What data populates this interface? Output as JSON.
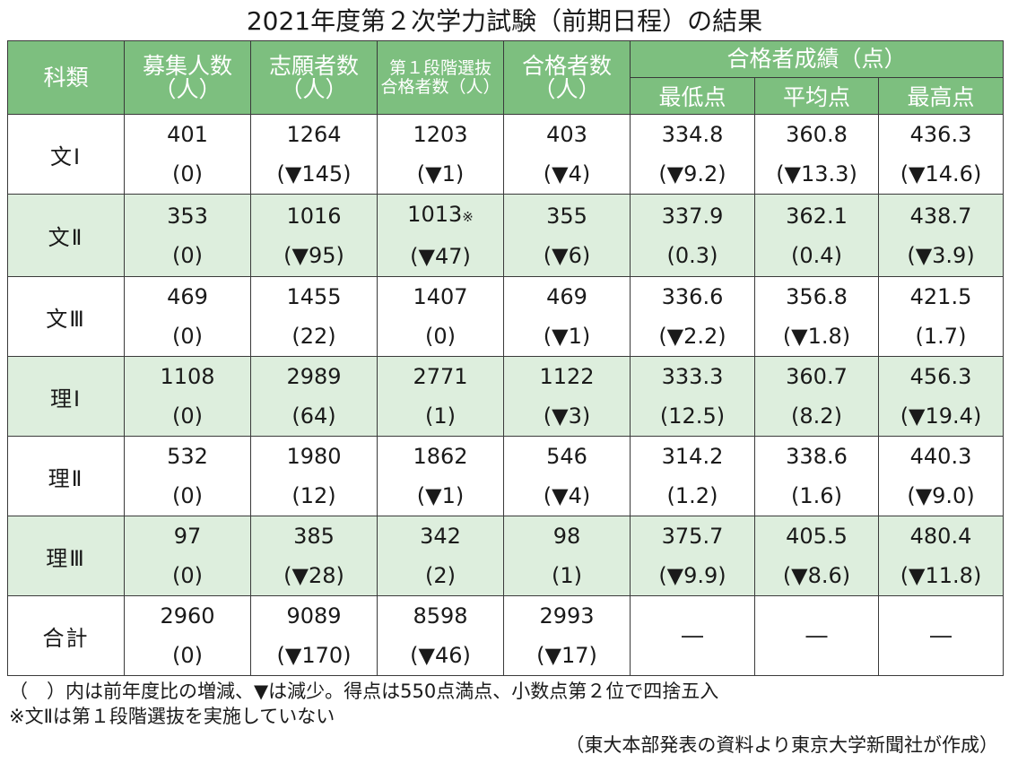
{
  "title": "2021年度第２次学力試験（前期日程）の結果",
  "headers": {
    "category": "科類",
    "recruit": [
      "募集人数",
      "（人）"
    ],
    "applicants": [
      "志願者数",
      "（人）"
    ],
    "first_stage": [
      "第１段階選抜",
      "合格者数（人）"
    ],
    "passers": [
      "合格者数",
      "（人）"
    ],
    "scores_group": "合格者成績（点）",
    "min": "最低点",
    "avg": "平均点",
    "max": "最高点"
  },
  "rows": [
    {
      "category": "文Ⅰ",
      "recruit": [
        "401",
        "(0)"
      ],
      "applicants": [
        "1264",
        "(▼145)"
      ],
      "first_stage": [
        "1203",
        "(▼1)"
      ],
      "first_stage_mark": "",
      "passers": [
        "403",
        "(▼4)"
      ],
      "min": [
        "334.8",
        "(▼9.2)"
      ],
      "avg": [
        "360.8",
        "(▼13.3)"
      ],
      "max": [
        "436.3",
        "(▼14.6)"
      ]
    },
    {
      "category": "文Ⅱ",
      "recruit": [
        "353",
        "(0)"
      ],
      "applicants": [
        "1016",
        "(▼95)"
      ],
      "first_stage": [
        "1013",
        "(▼47)"
      ],
      "first_stage_mark": "※",
      "passers": [
        "355",
        "(▼6)"
      ],
      "min": [
        "337.9",
        "(0.3)"
      ],
      "avg": [
        "362.1",
        "(0.4)"
      ],
      "max": [
        "438.7",
        "(▼3.9)"
      ]
    },
    {
      "category": "文Ⅲ",
      "recruit": [
        "469",
        "(0)"
      ],
      "applicants": [
        "1455",
        "(22)"
      ],
      "first_stage": [
        "1407",
        "(0)"
      ],
      "first_stage_mark": "",
      "passers": [
        "469",
        "(▼1)"
      ],
      "min": [
        "336.6",
        "(▼2.2)"
      ],
      "avg": [
        "356.8",
        "(▼1.8)"
      ],
      "max": [
        "421.5",
        "(1.7)"
      ]
    },
    {
      "category": "理Ⅰ",
      "recruit": [
        "1108",
        "(0)"
      ],
      "applicants": [
        "2989",
        "(64)"
      ],
      "first_stage": [
        "2771",
        "(1)"
      ],
      "first_stage_mark": "",
      "passers": [
        "1122",
        "(▼3)"
      ],
      "min": [
        "333.3",
        "(12.5)"
      ],
      "avg": [
        "360.7",
        "(8.2)"
      ],
      "max": [
        "456.3",
        "(▼19.4)"
      ]
    },
    {
      "category": "理Ⅱ",
      "recruit": [
        "532",
        "(0)"
      ],
      "applicants": [
        "1980",
        "(12)"
      ],
      "first_stage": [
        "1862",
        "(▼1)"
      ],
      "first_stage_mark": "",
      "passers": [
        "546",
        "(▼4)"
      ],
      "min": [
        "314.2",
        "(1.2)"
      ],
      "avg": [
        "338.6",
        "(1.6)"
      ],
      "max": [
        "440.3",
        "(▼9.0)"
      ]
    },
    {
      "category": "理Ⅲ",
      "recruit": [
        "97",
        "(0)"
      ],
      "applicants": [
        "385",
        "(▼28)"
      ],
      "first_stage": [
        "342",
        "(2)"
      ],
      "first_stage_mark": "",
      "passers": [
        "98",
        "(1)"
      ],
      "min": [
        "375.7",
        "(▼9.9)"
      ],
      "avg": [
        "405.5",
        "(▼8.6)"
      ],
      "max": [
        "480.4",
        "(▼11.8)"
      ]
    }
  ],
  "total": {
    "category": "合計",
    "recruit": [
      "2960",
      "(0)"
    ],
    "applicants": [
      "9089",
      "(▼170)"
    ],
    "first_stage": [
      "8598",
      "(▼46)"
    ],
    "passers": [
      "2993",
      "(▼17)"
    ],
    "min": "―",
    "avg": "―",
    "max": "―"
  },
  "notes": [
    "（　）内は前年度比の増減、▼は減少。得点は550点満点、小数点第２位で四捨五入",
    "※文Ⅱは第１段階選抜を実施していない"
  ],
  "source": "（東大本部発表の資料より東京大学新聞社が作成）",
  "colors": {
    "header_bg": "#7dbf7f",
    "shaded_row": "#ddeedd",
    "border": "#3a3a3a"
  }
}
